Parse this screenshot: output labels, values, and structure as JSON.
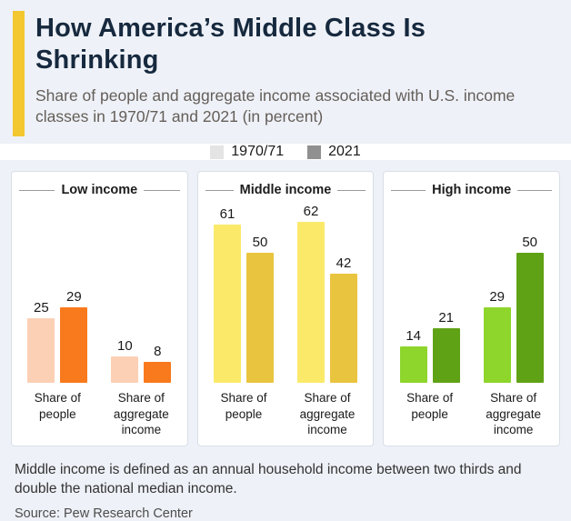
{
  "header": {
    "title": "How America’s Middle Class Is Shrinking",
    "subtitle": "Share of people and aggregate income associated with U.S. income classes in 1970/71 and 2021 (in percent)"
  },
  "legend": {
    "items": [
      {
        "label": "1970/71",
        "color": "#e4e4e4"
      },
      {
        "label": "2021",
        "color": "#909090"
      }
    ]
  },
  "chart_data": {
    "type": "bar",
    "unit": "percent",
    "series_labels": [
      "1970/71",
      "2021"
    ],
    "categories": [
      "Share of people",
      "Share of aggregate income"
    ],
    "ylim": [
      0,
      65
    ],
    "legend_position": "top",
    "grid": false,
    "panels": [
      {
        "title": "Low income",
        "colors": [
          "#fbd0b5",
          "#f9791d"
        ],
        "groups": [
          {
            "category": "Share of people",
            "values": [
              25,
              29
            ]
          },
          {
            "category": "Share of aggregate income",
            "values": [
              10,
              8
            ]
          }
        ]
      },
      {
        "title": "Middle income",
        "colors": [
          "#fbe96a",
          "#e9c43e"
        ],
        "groups": [
          {
            "category": "Share of people",
            "values": [
              61,
              50
            ]
          },
          {
            "category": "Share of aggregate income",
            "values": [
              62,
              42
            ]
          }
        ]
      },
      {
        "title": "High income",
        "colors": [
          "#8ed52c",
          "#60a216"
        ],
        "groups": [
          {
            "category": "Share of people",
            "values": [
              14,
              21
            ]
          },
          {
            "category": "Share of aggregate income",
            "values": [
              29,
              50
            ]
          }
        ]
      }
    ]
  },
  "footer": {
    "note": "Middle income is defined as an annual household income between two thirds and double the national median income.",
    "source": "Source: Pew Research Center"
  }
}
